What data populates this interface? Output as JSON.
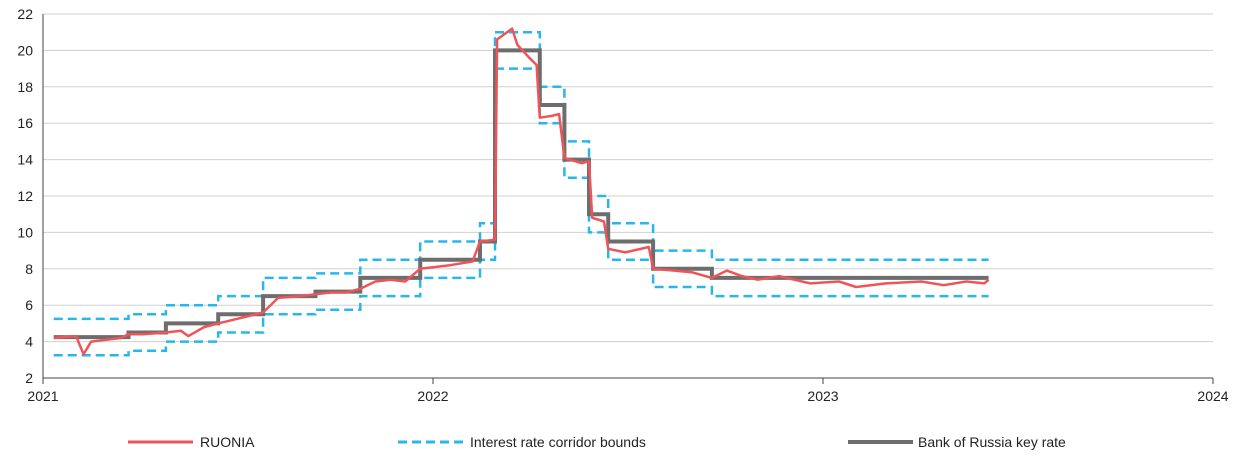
{
  "chart_data": {
    "type": "line",
    "title": "",
    "xlabel": "",
    "ylabel": "",
    "xlim": [
      "2021-01-01",
      "2024-01-01"
    ],
    "ylim": [
      2,
      22
    ],
    "y_ticks": [
      2,
      4,
      6,
      8,
      10,
      12,
      14,
      16,
      18,
      20,
      22
    ],
    "x_ticks": [
      "2021",
      "2022",
      "2023",
      "2024"
    ],
    "grid": "horizontal",
    "legend_position": "bottom",
    "colors": {
      "ruonia": "#ef5558",
      "corridor": "#29b6e8",
      "key_rate": "#6d6d6d",
      "grid": "#d0d0d0",
      "axis": "#444444"
    },
    "series": [
      {
        "name": "RUONIA",
        "style": "solid",
        "points": [
          [
            "2021-01-11",
            4.2
          ],
          [
            "2021-02-01",
            4.3
          ],
          [
            "2021-02-08",
            3.3
          ],
          [
            "2021-02-15",
            4.0
          ],
          [
            "2021-03-01",
            4.1
          ],
          [
            "2021-03-15",
            4.2
          ],
          [
            "2021-03-22",
            4.4
          ],
          [
            "2021-04-05",
            4.4
          ],
          [
            "2021-04-26",
            4.5
          ],
          [
            "2021-05-10",
            4.6
          ],
          [
            "2021-05-17",
            4.3
          ],
          [
            "2021-06-01",
            4.8
          ],
          [
            "2021-06-14",
            5.0
          ],
          [
            "2021-06-28",
            5.2
          ],
          [
            "2021-07-12",
            5.4
          ],
          [
            "2021-07-26",
            5.6
          ],
          [
            "2021-08-09",
            6.4
          ],
          [
            "2021-08-30",
            6.5
          ],
          [
            "2021-09-13",
            6.6
          ],
          [
            "2021-09-27",
            6.7
          ],
          [
            "2021-10-11",
            6.7
          ],
          [
            "2021-10-25",
            6.9
          ],
          [
            "2021-11-08",
            7.3
          ],
          [
            "2021-11-22",
            7.4
          ],
          [
            "2021-12-06",
            7.3
          ],
          [
            "2021-12-20",
            8.0
          ],
          [
            "2022-01-17",
            8.2
          ],
          [
            "2022-02-07",
            8.4
          ],
          [
            "2022-02-14",
            9.5
          ],
          [
            "2022-02-28",
            9.6
          ],
          [
            "2022-03-02",
            20.6
          ],
          [
            "2022-03-09",
            20.9
          ],
          [
            "2022-03-16",
            21.2
          ],
          [
            "2022-03-21",
            20.3
          ],
          [
            "2022-04-01",
            19.6
          ],
          [
            "2022-04-08",
            19.2
          ],
          [
            "2022-04-11",
            16.3
          ],
          [
            "2022-04-22",
            16.4
          ],
          [
            "2022-04-29",
            16.5
          ],
          [
            "2022-05-04",
            14.1
          ],
          [
            "2022-05-20",
            13.8
          ],
          [
            "2022-05-27",
            13.9
          ],
          [
            "2022-05-30",
            10.8
          ],
          [
            "2022-06-10",
            10.6
          ],
          [
            "2022-06-14",
            9.1
          ],
          [
            "2022-06-30",
            8.9
          ],
          [
            "2022-07-22",
            9.2
          ],
          [
            "2022-07-26",
            8.0
          ],
          [
            "2022-08-15",
            7.9
          ],
          [
            "2022-09-01",
            7.8
          ],
          [
            "2022-09-19",
            7.5
          ],
          [
            "2022-10-03",
            7.9
          ],
          [
            "2022-10-17",
            7.6
          ],
          [
            "2022-11-01",
            7.4
          ],
          [
            "2022-11-21",
            7.6
          ],
          [
            "2022-12-05",
            7.4
          ],
          [
            "2022-12-20",
            7.2
          ],
          [
            "2023-01-16",
            7.3
          ],
          [
            "2023-02-01",
            7.0
          ],
          [
            "2023-03-01",
            7.2
          ],
          [
            "2023-04-03",
            7.3
          ],
          [
            "2023-04-24",
            7.1
          ],
          [
            "2023-05-15",
            7.3
          ],
          [
            "2023-06-01",
            7.2
          ],
          [
            "2023-06-05",
            7.4
          ]
        ]
      },
      {
        "name": "Interest rate corridor bounds",
        "style": "dashed",
        "bounds": {
          "upper": [
            [
              "2021-01-11",
              5.25
            ],
            [
              "2021-03-22",
              5.5
            ],
            [
              "2021-04-26",
              6.0
            ],
            [
              "2021-06-14",
              6.5
            ],
            [
              "2021-07-26",
              7.5
            ],
            [
              "2021-09-13",
              7.75
            ],
            [
              "2021-10-25",
              8.5
            ],
            [
              "2021-12-20",
              9.5
            ],
            [
              "2022-02-14",
              10.5
            ],
            [
              "2022-02-28",
              21.0
            ],
            [
              "2022-04-11",
              18.0
            ],
            [
              "2022-05-04",
              15.0
            ],
            [
              "2022-05-27",
              12.0
            ],
            [
              "2022-06-14",
              10.5
            ],
            [
              "2022-07-26",
              9.0
            ],
            [
              "2022-09-19",
              8.5
            ],
            [
              "2023-06-05",
              8.5
            ]
          ],
          "lower": [
            [
              "2021-01-11",
              3.25
            ],
            [
              "2021-03-22",
              3.5
            ],
            [
              "2021-04-26",
              4.0
            ],
            [
              "2021-06-14",
              4.5
            ],
            [
              "2021-07-26",
              5.5
            ],
            [
              "2021-09-13",
              5.75
            ],
            [
              "2021-10-25",
              6.5
            ],
            [
              "2021-12-20",
              7.5
            ],
            [
              "2022-02-14",
              8.5
            ],
            [
              "2022-02-28",
              19.0
            ],
            [
              "2022-04-11",
              16.0
            ],
            [
              "2022-05-04",
              13.0
            ],
            [
              "2022-05-27",
              10.0
            ],
            [
              "2022-06-14",
              8.5
            ],
            [
              "2022-07-26",
              7.0
            ],
            [
              "2022-09-19",
              6.5
            ],
            [
              "2023-06-05",
              6.5
            ]
          ]
        }
      },
      {
        "name": "Bank of Russia key rate",
        "style": "solid-thick",
        "steps": [
          [
            "2021-01-11",
            4.25
          ],
          [
            "2021-03-22",
            4.5
          ],
          [
            "2021-04-26",
            5.0
          ],
          [
            "2021-06-14",
            5.5
          ],
          [
            "2021-07-26",
            6.5
          ],
          [
            "2021-09-13",
            6.75
          ],
          [
            "2021-10-25",
            7.5
          ],
          [
            "2021-12-20",
            8.5
          ],
          [
            "2022-02-14",
            9.5
          ],
          [
            "2022-02-28",
            20.0
          ],
          [
            "2022-04-11",
            17.0
          ],
          [
            "2022-05-04",
            14.0
          ],
          [
            "2022-05-27",
            11.0
          ],
          [
            "2022-06-14",
            9.5
          ],
          [
            "2022-07-26",
            8.0
          ],
          [
            "2022-09-19",
            7.5
          ],
          [
            "2023-06-05",
            7.5
          ]
        ]
      }
    ]
  }
}
